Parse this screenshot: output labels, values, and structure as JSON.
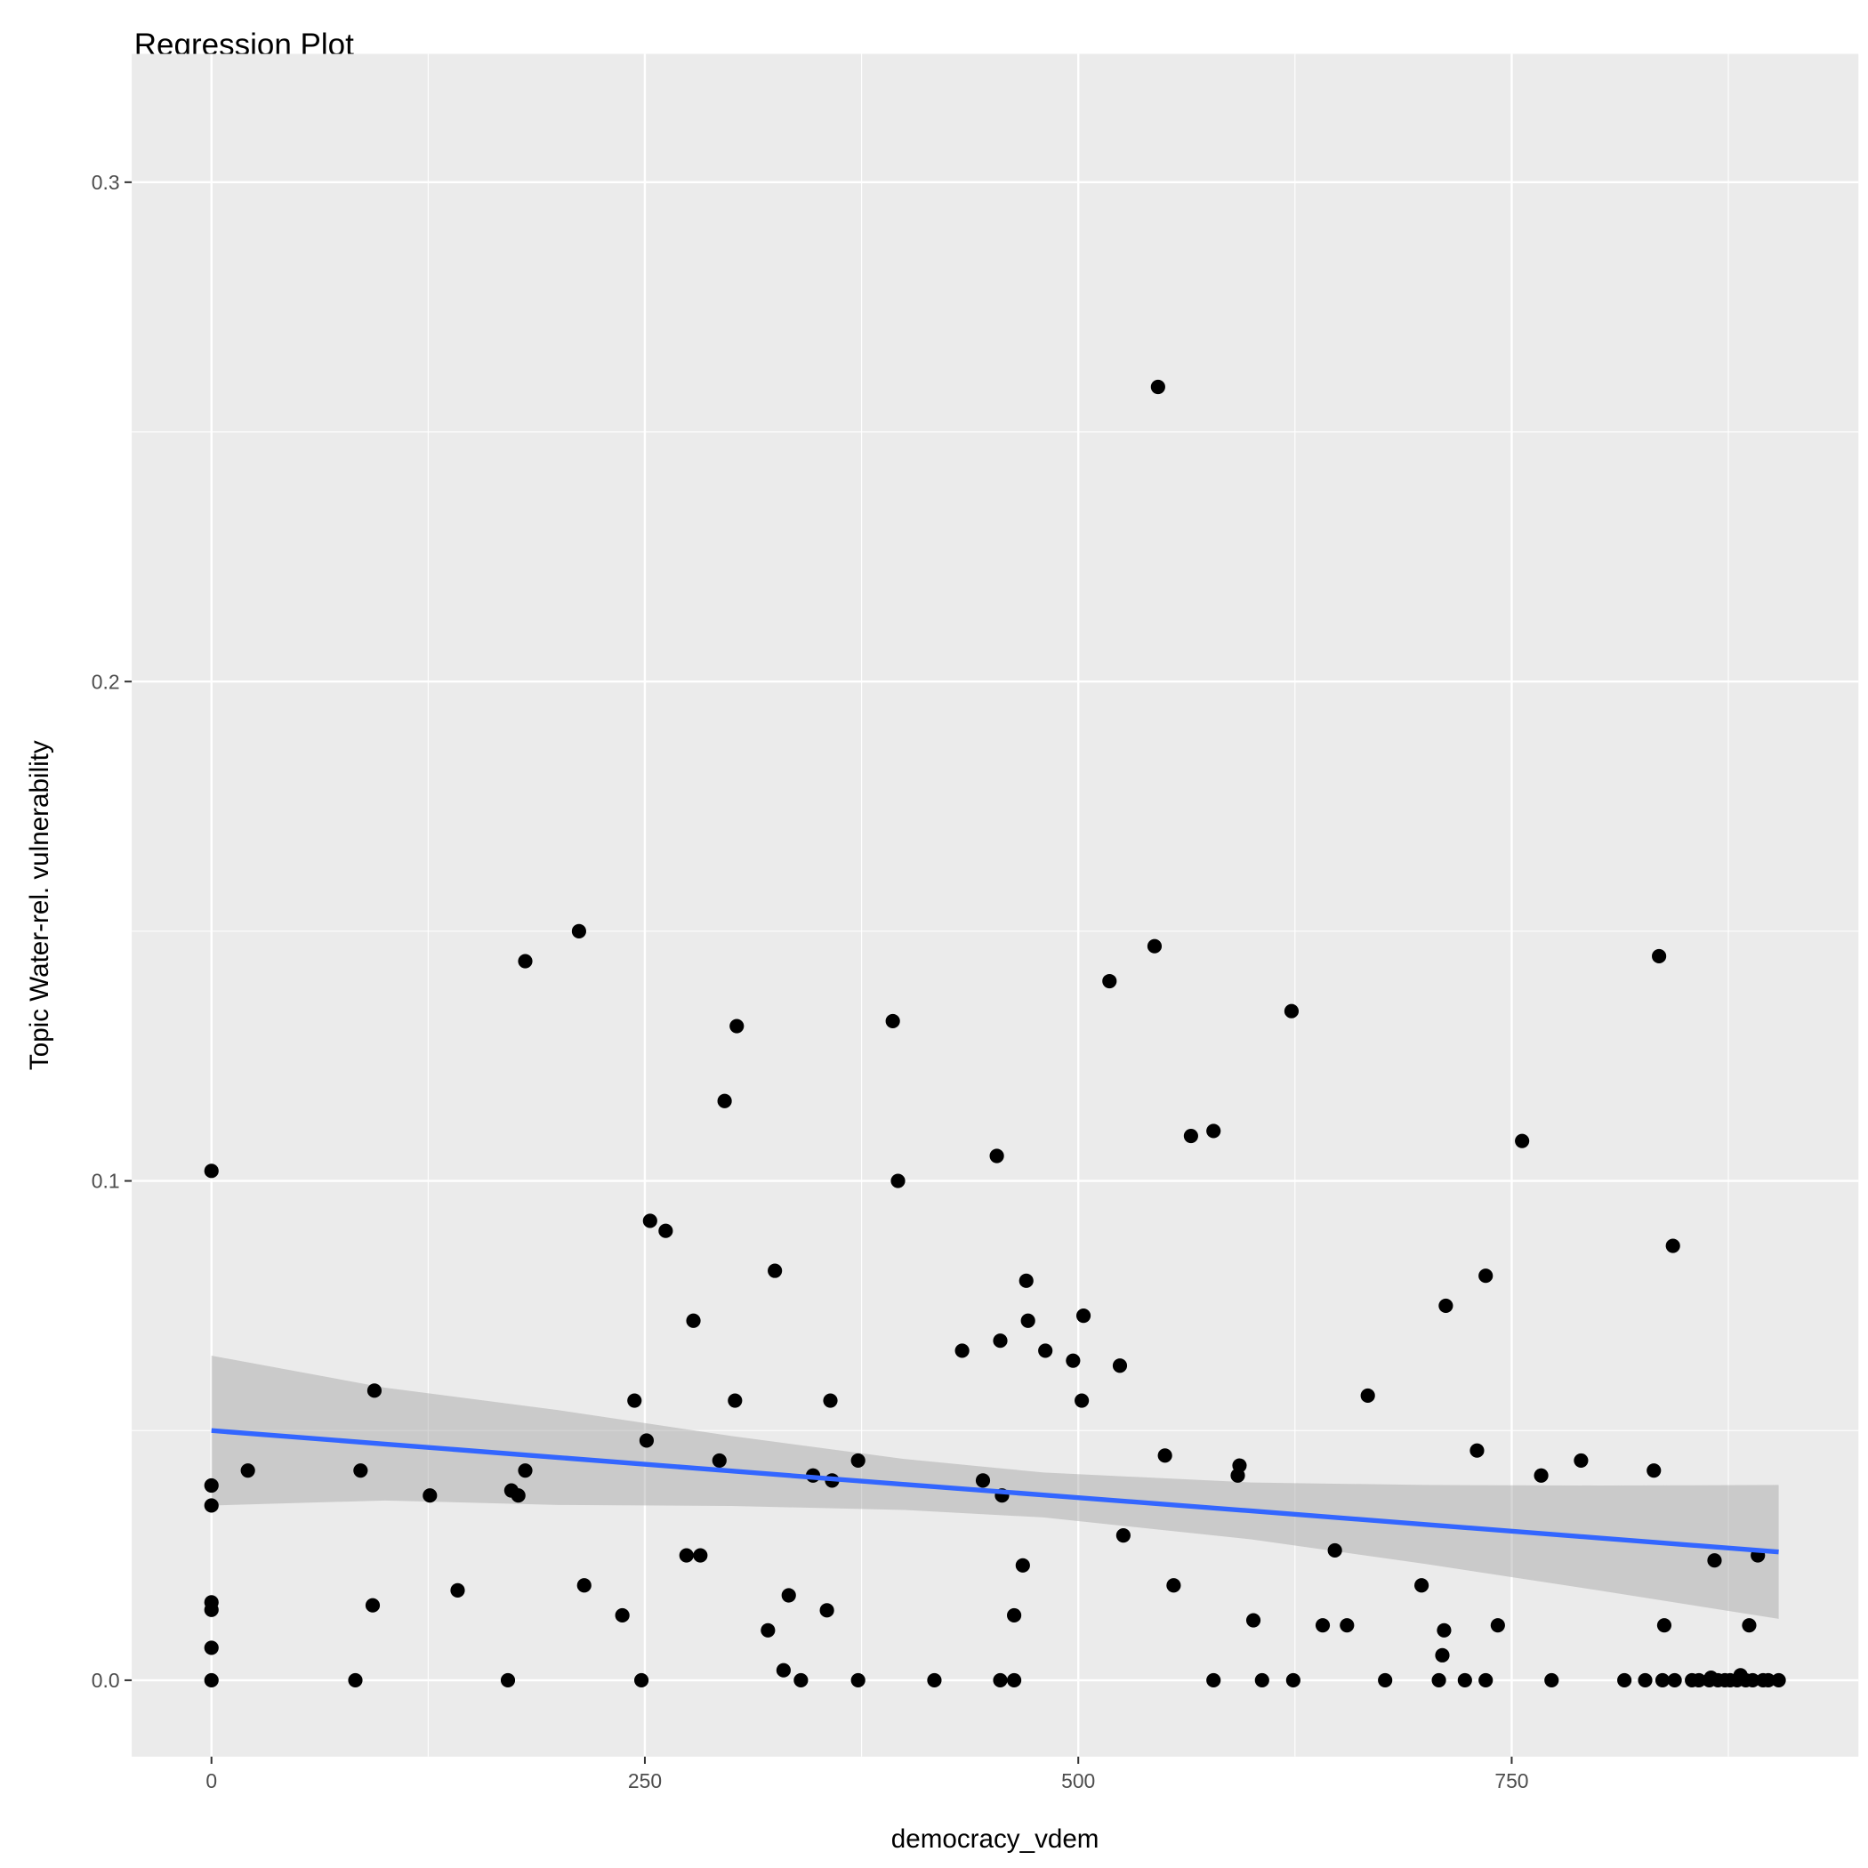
{
  "chart_data": {
    "type": "scatter",
    "title": "Regression Plot",
    "xlabel": "democracy_vdem",
    "ylabel": "Topic Water-rel. vulnerability",
    "xlim": [
      -46,
      950
    ],
    "ylim": [
      -0.0153,
      0.3257
    ],
    "xticks": [
      0,
      250,
      500,
      750
    ],
    "xtick_labels": [
      "0",
      "250",
      "500",
      "750"
    ],
    "yticks": [
      0.0,
      0.1,
      0.2,
      0.3
    ],
    "ytick_labels": [
      "0.0",
      "0.1",
      "0.2",
      "0.3"
    ],
    "grid": true,
    "colors": {
      "panel": "#EBEBEB",
      "grid": "#FFFFFF",
      "point": "#000000",
      "line": "#3366FF",
      "ribbon": "#999999"
    },
    "points": [
      [
        0,
        0.102
      ],
      [
        0,
        0.039
      ],
      [
        0,
        0.035
      ],
      [
        0,
        0.0156
      ],
      [
        0,
        0.0141
      ],
      [
        0,
        0.0065
      ],
      [
        0,
        0
      ],
      [
        21,
        0.042
      ],
      [
        83,
        0
      ],
      [
        86,
        0.042
      ],
      [
        93,
        0.015
      ],
      [
        94,
        0.058
      ],
      [
        126,
        0.037
      ],
      [
        142,
        0.018
      ],
      [
        171,
        0
      ],
      [
        173,
        0.038
      ],
      [
        177,
        0.037
      ],
      [
        181,
        0.042
      ],
      [
        181,
        0.144
      ],
      [
        212,
        0.15
      ],
      [
        215,
        0.019
      ],
      [
        237,
        0.013
      ],
      [
        244,
        0.056
      ],
      [
        248,
        0
      ],
      [
        251,
        0.048
      ],
      [
        253,
        0.092
      ],
      [
        262,
        0.09
      ],
      [
        274,
        0.025
      ],
      [
        278,
        0.072
      ],
      [
        282,
        0.025
      ],
      [
        293,
        0.044
      ],
      [
        296,
        0.116
      ],
      [
        302,
        0.056
      ],
      [
        303,
        0.131
      ],
      [
        321,
        0.01
      ],
      [
        325,
        0.082
      ],
      [
        330,
        0.002
      ],
      [
        333,
        0.017
      ],
      [
        340,
        0
      ],
      [
        347,
        0.041
      ],
      [
        355,
        0.014
      ],
      [
        357,
        0.056
      ],
      [
        358,
        0.04
      ],
      [
        373,
        0
      ],
      [
        373,
        0.044
      ],
      [
        393,
        0.132
      ],
      [
        396,
        0.1
      ],
      [
        417,
        0
      ],
      [
        433,
        0.066
      ],
      [
        445,
        0.04
      ],
      [
        453,
        0.105
      ],
      [
        455,
        0.068
      ],
      [
        455,
        0
      ],
      [
        456,
        0.037
      ],
      [
        463,
        0.013
      ],
      [
        463,
        0
      ],
      [
        468,
        0.023
      ],
      [
        470,
        0.08
      ],
      [
        471,
        0.072
      ],
      [
        481,
        0.066
      ],
      [
        497,
        0.064
      ],
      [
        502,
        0.056
      ],
      [
        503,
        0.073
      ],
      [
        518,
        0.14
      ],
      [
        524,
        0.063
      ],
      [
        526,
        0.029
      ],
      [
        544,
        0.147
      ],
      [
        546,
        0.259
      ],
      [
        550,
        0.045
      ],
      [
        555,
        0.019
      ],
      [
        565,
        0.109
      ],
      [
        578,
        0
      ],
      [
        578,
        0.11
      ],
      [
        592,
        0.041
      ],
      [
        593,
        0.043
      ],
      [
        601,
        0.012
      ],
      [
        606,
        0
      ],
      [
        623,
        0.134
      ],
      [
        624,
        0
      ],
      [
        641,
        0.011
      ],
      [
        648,
        0.026
      ],
      [
        655,
        0.011
      ],
      [
        667,
        0.057
      ],
      [
        677,
        0
      ],
      [
        698,
        0.019
      ],
      [
        708,
        0
      ],
      [
        710,
        0.005
      ],
      [
        711,
        0.01
      ],
      [
        712,
        0.075
      ],
      [
        723,
        0
      ],
      [
        730,
        0.046
      ],
      [
        735,
        0.081
      ],
      [
        735,
        0
      ],
      [
        742,
        0.011
      ],
      [
        756,
        0.108
      ],
      [
        767,
        0.041
      ],
      [
        773,
        0
      ],
      [
        790,
        0.044
      ],
      [
        815,
        0
      ],
      [
        827,
        0
      ],
      [
        832,
        0.042
      ],
      [
        835,
        0.145
      ],
      [
        837,
        0
      ],
      [
        838,
        0.011
      ],
      [
        843,
        0.087
      ],
      [
        844,
        0
      ],
      [
        854,
        0
      ],
      [
        858,
        0
      ],
      [
        864,
        0
      ],
      [
        865,
        0.0005
      ],
      [
        867,
        0.024
      ],
      [
        869,
        0
      ],
      [
        873,
        0
      ],
      [
        876,
        0
      ],
      [
        880,
        0
      ],
      [
        882,
        0.001
      ],
      [
        885,
        0
      ],
      [
        887,
        0.011
      ],
      [
        889,
        0
      ],
      [
        892,
        0.025
      ],
      [
        895,
        0
      ],
      [
        898,
        0
      ],
      [
        904,
        0
      ]
    ],
    "regression": {
      "method": "lm",
      "x": [
        0,
        100,
        200,
        300,
        400,
        480,
        600,
        700,
        800,
        904
      ],
      "fit": [
        0.05,
        0.0473,
        0.0446,
        0.0419,
        0.0392,
        0.0371,
        0.0339,
        0.0312,
        0.0285,
        0.0257
      ],
      "ci_lower": [
        0.035,
        0.036,
        0.0351,
        0.0349,
        0.0341,
        0.0326,
        0.0282,
        0.0233,
        0.018,
        0.0123
      ],
      "ci_upper": [
        0.065,
        0.0586,
        0.0541,
        0.0489,
        0.0443,
        0.0416,
        0.0396,
        0.0391,
        0.039,
        0.0391
      ]
    }
  }
}
